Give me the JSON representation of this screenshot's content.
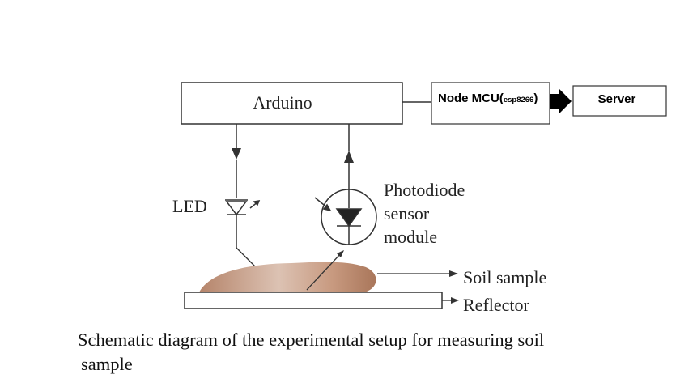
{
  "diagram": {
    "blocks": {
      "arduino": "Arduino",
      "nodemcu_main": "Node MCU(",
      "nodemcu_sub": "esp8266",
      "nodemcu_close": ")",
      "server": "Server"
    },
    "labels": {
      "led": "LED",
      "photodiode_line1": "Photodiode",
      "photodiode_line2": "sensor",
      "photodiode_line3": "module",
      "soil_sample": "Soil sample",
      "reflector": "Reflector"
    },
    "colors": {
      "soil_dark": "#b98a6e",
      "soil_light": "#f2e6df",
      "stroke": "#333333"
    }
  },
  "caption": {
    "line1": "Schematic diagram of the experimental setup for measuring soil",
    "line2": "sample"
  }
}
